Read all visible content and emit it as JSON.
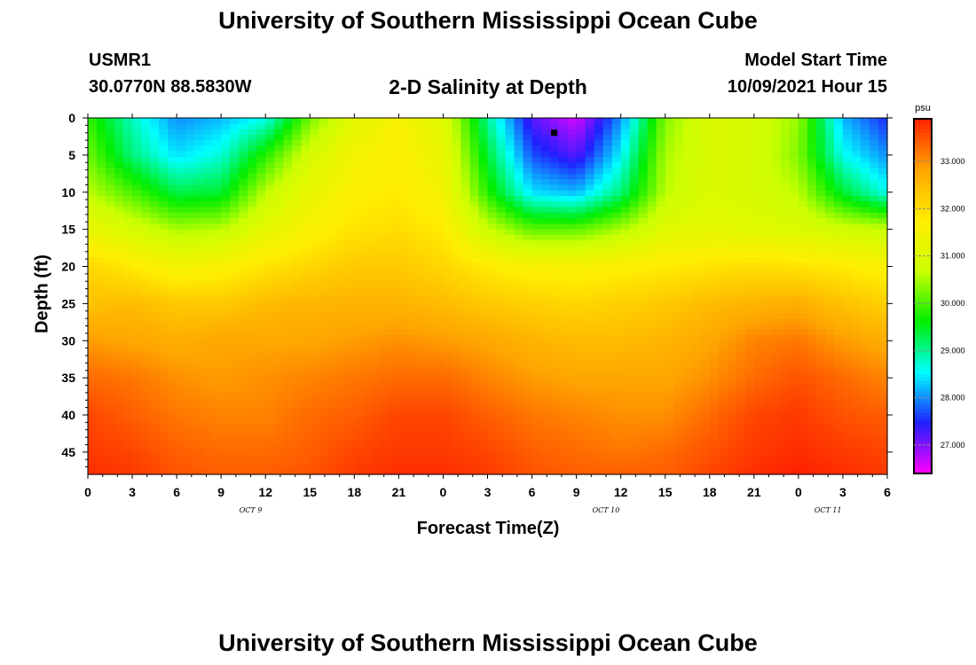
{
  "header": {
    "title": "University of Southern Mississippi Ocean Cube",
    "station": "USMR1",
    "coords": "30.0770N  88.5830W",
    "plot_title": "2-D Salinity at Depth",
    "model_label": "Model Start Time",
    "model_time": "10/09/2021 Hour 15"
  },
  "footer": {
    "title": "University of Southern Mississippi Ocean Cube"
  },
  "colors": {
    "palette": [
      "#ff00ff",
      "#2020ff",
      "#00ffff",
      "#00ee00",
      "#ccff00",
      "#ffee00",
      "#ffa500",
      "#ff2000"
    ]
  },
  "chart_data": {
    "type": "heatmap",
    "xlabel": "Forecast Time(Z)",
    "ylabel": "Depth (ft)",
    "x_tick_labels": [
      "0",
      "3",
      "6",
      "9",
      "12",
      "15",
      "18",
      "21",
      "0",
      "3",
      "6",
      "9",
      "12",
      "15",
      "18",
      "21",
      "0",
      "3",
      "6"
    ],
    "date_labels": [
      {
        "label": "OCT 9",
        "hour": 11
      },
      {
        "label": "OCT 10",
        "hour": 35
      },
      {
        "label": "OCT 11",
        "hour": 50
      }
    ],
    "x_range_hours": [
      0,
      54
    ],
    "y_ticks": [
      0,
      5,
      10,
      15,
      20,
      25,
      30,
      35,
      40,
      45
    ],
    "y_range": [
      0,
      48
    ],
    "colorbar": {
      "unit": "psu",
      "ticks": [
        "33.000",
        "32.000",
        "31.000",
        "30.000",
        "29.000",
        "28.000",
        "27.000"
      ],
      "tick_values": [
        33,
        32,
        31,
        30,
        29,
        28,
        27
      ],
      "range": [
        26.4,
        33.9
      ]
    },
    "marker": {
      "hour": 31.5,
      "depth": 2
    },
    "time_hours": [
      0,
      3,
      6,
      9,
      12,
      15,
      18,
      21,
      24,
      27,
      30,
      33,
      36,
      39,
      42,
      45,
      48,
      51,
      54
    ],
    "depths_ft": [
      0,
      5,
      10,
      15,
      20,
      25,
      30,
      35,
      40,
      45,
      48
    ],
    "salinity": [
      [
        29.9,
        28.8,
        28.0,
        28.2,
        28.6,
        30.2,
        31.2,
        31.6,
        31.1,
        29.0,
        27.2,
        26.6,
        28.0,
        30.3,
        31.0,
        30.9,
        30.4,
        28.2,
        27.5
      ],
      [
        30.2,
        29.1,
        28.4,
        28.7,
        29.8,
        30.9,
        31.5,
        31.7,
        31.3,
        29.4,
        27.7,
        27.2,
        28.5,
        30.5,
        31.0,
        30.9,
        30.3,
        28.6,
        28.0
      ],
      [
        30.6,
        30.0,
        29.3,
        29.4,
        30.6,
        31.3,
        31.7,
        31.8,
        31.5,
        29.8,
        28.4,
        28.2,
        29.1,
        30.6,
        31.0,
        30.9,
        30.6,
        29.4,
        28.6
      ],
      [
        31.3,
        30.9,
        30.5,
        30.6,
        31.2,
        31.6,
        31.9,
        32.0,
        31.8,
        30.7,
        30.1,
        30.1,
        30.5,
        31.1,
        31.2,
        31.1,
        31.0,
        30.8,
        30.7
      ],
      [
        32.1,
        31.8,
        31.5,
        31.6,
        31.9,
        32.1,
        32.3,
        32.3,
        32.1,
        31.8,
        31.6,
        31.6,
        31.7,
        31.8,
        31.9,
        32.0,
        31.9,
        31.8,
        31.6
      ],
      [
        32.4,
        32.5,
        32.3,
        32.3,
        32.5,
        32.6,
        32.6,
        32.6,
        32.5,
        32.3,
        32.2,
        32.1,
        32.2,
        32.3,
        32.5,
        32.6,
        32.7,
        32.4,
        32.2
      ],
      [
        32.9,
        32.8,
        32.7,
        32.8,
        32.8,
        32.8,
        32.9,
        33.0,
        32.9,
        32.8,
        32.6,
        32.5,
        32.5,
        32.6,
        32.8,
        33.1,
        33.2,
        32.9,
        32.7
      ],
      [
        33.3,
        33.2,
        33.0,
        32.9,
        33.0,
        33.1,
        33.2,
        33.3,
        33.3,
        33.1,
        32.9,
        32.8,
        32.8,
        32.8,
        33.0,
        33.3,
        33.5,
        33.3,
        33.1
      ],
      [
        33.6,
        33.4,
        33.2,
        33.1,
        33.1,
        33.3,
        33.4,
        33.6,
        33.6,
        33.4,
        33.2,
        33.1,
        33.0,
        33.0,
        33.3,
        33.6,
        33.7,
        33.5,
        33.4
      ],
      [
        33.7,
        33.6,
        33.4,
        33.3,
        33.3,
        33.4,
        33.6,
        33.7,
        33.7,
        33.6,
        33.4,
        33.3,
        33.2,
        33.3,
        33.5,
        33.7,
        33.8,
        33.7,
        33.6
      ],
      [
        33.8,
        33.7,
        33.5,
        33.4,
        33.4,
        33.5,
        33.7,
        33.8,
        33.8,
        33.7,
        33.5,
        33.4,
        33.4,
        33.4,
        33.6,
        33.8,
        33.9,
        33.8,
        33.7
      ]
    ]
  }
}
